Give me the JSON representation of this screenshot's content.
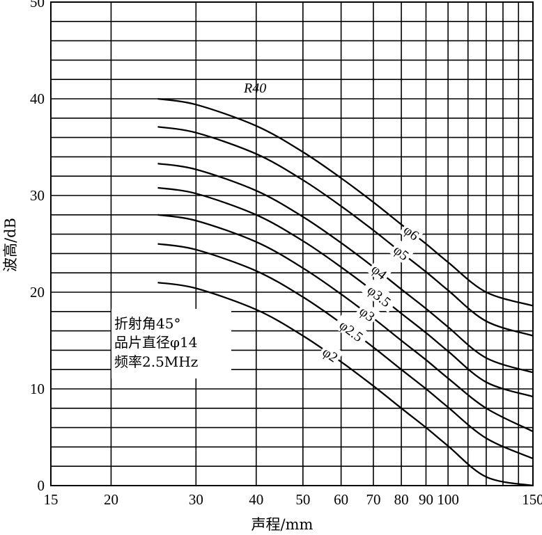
{
  "chart_data": {
    "type": "line",
    "title": "",
    "xlabel": "声程/mm",
    "ylabel": "波高/dB",
    "xscale": "log",
    "xlim": [
      15,
      150
    ],
    "ylim": [
      0,
      50
    ],
    "grid": true,
    "x_ticks": [
      15,
      20,
      30,
      40,
      50,
      60,
      70,
      80,
      90,
      100,
      150
    ],
    "x_tick_labels": [
      "15",
      "20",
      "30",
      "40",
      "50",
      "60",
      "70",
      "80",
      "90",
      "100",
      "150"
    ],
    "x_gridlines": [
      15,
      20,
      30,
      40,
      50,
      60,
      70,
      80,
      90,
      100,
      110,
      120,
      130,
      140,
      150
    ],
    "y_ticks": [
      0,
      10,
      20,
      30,
      40,
      50
    ],
    "y_tick_labels": [
      "0",
      "10",
      "20",
      "30",
      "40",
      "50"
    ],
    "y_gridlines": [
      0,
      2,
      4,
      6,
      8,
      10,
      12,
      14,
      16,
      18,
      20,
      22,
      24,
      26,
      28,
      30,
      32,
      34,
      36,
      38,
      40,
      42,
      44,
      46,
      48,
      50
    ],
    "series": [
      {
        "name": "φ6",
        "x": [
          25,
          30,
          40,
          50,
          60,
          70,
          80,
          90,
          100,
          120,
          150
        ],
        "y": [
          40.0,
          39.4,
          37.2,
          34.5,
          31.8,
          29.3,
          27.0,
          25.0,
          23.1,
          20.0,
          18.6
        ]
      },
      {
        "name": "φ5",
        "x": [
          25,
          30,
          40,
          50,
          60,
          70,
          80,
          90,
          100,
          120,
          150
        ],
        "y": [
          37.1,
          36.5,
          34.3,
          31.6,
          28.9,
          26.4,
          24.1,
          22.1,
          20.2,
          17.0,
          15.5
        ]
      },
      {
        "name": "φ4",
        "x": [
          25,
          30,
          40,
          50,
          60,
          70,
          80,
          90,
          100,
          120,
          150
        ],
        "y": [
          33.3,
          32.7,
          30.5,
          27.8,
          25.1,
          22.6,
          20.3,
          18.3,
          16.4,
          13.2,
          11.7
        ]
      },
      {
        "name": "φ3.5",
        "x": [
          25,
          30,
          40,
          50,
          60,
          70,
          80,
          90,
          100,
          120,
          150
        ],
        "y": [
          30.8,
          30.2,
          28.0,
          25.3,
          22.6,
          20.1,
          17.8,
          15.8,
          13.9,
          10.7,
          9.2
        ]
      },
      {
        "name": "φ3",
        "x": [
          25,
          30,
          40,
          50,
          60,
          70,
          80,
          90,
          100,
          120,
          150
        ],
        "y": [
          28.0,
          27.4,
          25.2,
          22.5,
          19.8,
          17.3,
          15.0,
          13.0,
          11.1,
          8.0,
          5.6
        ]
      },
      {
        "name": "φ2.5",
        "x": [
          25,
          30,
          40,
          50,
          60,
          70,
          80,
          90,
          100,
          120,
          150
        ],
        "y": [
          25.0,
          24.4,
          22.2,
          19.5,
          16.8,
          14.3,
          12.0,
          10.0,
          8.1,
          4.9,
          2.8
        ]
      },
      {
        "name": "φ2",
        "x": [
          25,
          30,
          40,
          50,
          60,
          70,
          80,
          90,
          100,
          120,
          150
        ],
        "y": [
          21.0,
          20.4,
          18.2,
          15.5,
          12.8,
          10.3,
          8.0,
          6.0,
          4.1,
          0.9,
          0.0
        ]
      }
    ],
    "curve_group_label": "R40",
    "annotations": [
      "折射角45°",
      "品片直径φ14",
      "频率2.5MHz"
    ]
  }
}
